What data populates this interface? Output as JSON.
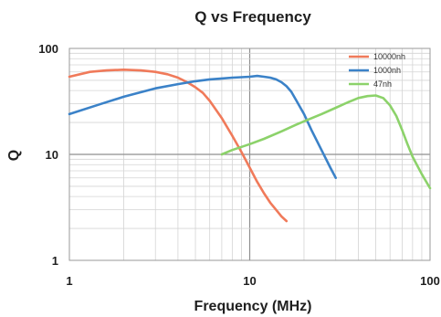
{
  "chart_data": {
    "type": "line",
    "title": "Q vs Frequency",
    "xlabel": "Frequency (MHz)",
    "ylabel": "Q",
    "xscale": "log",
    "yscale": "log",
    "xlim": [
      1,
      100
    ],
    "ylim": [
      1,
      100
    ],
    "xticks": [
      {
        "value": 1,
        "label": "1"
      },
      {
        "value": 10,
        "label": "10"
      },
      {
        "value": 100,
        "label": "100"
      }
    ],
    "yticks": [
      {
        "value": 1,
        "label": "1"
      },
      {
        "value": 10,
        "label": "10"
      },
      {
        "value": 100,
        "label": "100"
      }
    ],
    "grid": true,
    "legend_position": "top-right",
    "series": [
      {
        "name": "10000nh",
        "color": "#f07a5a",
        "x": [
          1,
          1.3,
          1.6,
          2,
          2.5,
          3,
          3.5,
          4,
          4.5,
          5,
          5.5,
          6,
          7,
          8,
          9,
          10,
          11,
          12,
          13,
          14,
          15,
          16
        ],
        "y": [
          54,
          60,
          62,
          63,
          62,
          60,
          57,
          53,
          48,
          43,
          38,
          32,
          22,
          15,
          10.5,
          7.5,
          5.5,
          4.3,
          3.5,
          3,
          2.6,
          2.35
        ]
      },
      {
        "name": "1000nh",
        "color": "#3b82c8",
        "x": [
          1,
          1.5,
          2,
          3,
          4,
          5,
          6,
          7,
          8,
          9,
          10,
          11,
          12,
          13,
          14,
          15,
          16,
          17,
          18,
          20,
          22,
          25,
          28,
          30
        ],
        "y": [
          24,
          30,
          35,
          42,
          46,
          49,
          51,
          52,
          53,
          53.5,
          54,
          55,
          54,
          53,
          51,
          48,
          44,
          39,
          33,
          24,
          17,
          11,
          7.5,
          6
        ]
      },
      {
        "name": "47nh",
        "color": "#8cd26a",
        "x": [
          7,
          8,
          10,
          12,
          15,
          18,
          20,
          25,
          30,
          35,
          40,
          45,
          50,
          55,
          60,
          65,
          70,
          75,
          80,
          90,
          100
        ],
        "y": [
          10,
          11,
          12.5,
          14,
          16.5,
          19,
          20.5,
          24,
          27.5,
          31,
          34,
          35.5,
          36,
          34,
          29,
          23,
          17,
          12.5,
          9.5,
          6.5,
          4.8
        ]
      }
    ]
  }
}
